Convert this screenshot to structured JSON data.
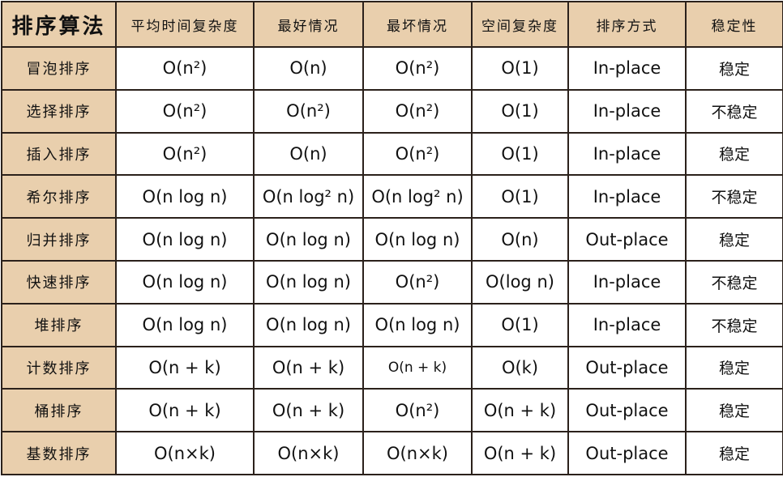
{
  "colors": {
    "header_bg": "#e9cfad",
    "border": "#2b211b",
    "cell_bg": "#ffffff"
  },
  "headers": [
    "排序算法",
    "平均时间复杂度",
    "最好情况",
    "最坏情况",
    "空间复杂度",
    "排序方式",
    "稳定性"
  ],
  "rows": [
    [
      "冒泡排序",
      "O(n²)",
      "O(n)",
      "O(n²)",
      "O(1)",
      "In-place",
      "稳定"
    ],
    [
      "选择排序",
      "O(n²)",
      "O(n²)",
      "O(n²)",
      "O(1)",
      "In-place",
      "不稳定"
    ],
    [
      "插入排序",
      "O(n²)",
      "O(n)",
      "O(n²)",
      "O(1)",
      "In-place",
      "稳定"
    ],
    [
      "希尔排序",
      "O(n log n)",
      "O(n log² n)",
      "O(n log² n)",
      "O(1)",
      "In-place",
      "不稳定"
    ],
    [
      "归并排序",
      "O(n log n)",
      "O(n log n)",
      "O(n log n)",
      "O(n)",
      "Out-place",
      "稳定"
    ],
    [
      "快速排序",
      "O(n log n)",
      "O(n log n)",
      "O(n²)",
      "O(log n)",
      "In-place",
      "不稳定"
    ],
    [
      "堆排序",
      "O(n log n)",
      "O(n log n)",
      "O(n log n)",
      "O(1)",
      "In-place",
      "不稳定"
    ],
    [
      "计数排序",
      "O(n + k)",
      "O(n + k)",
      "O(n + k)",
      "O(k)",
      "Out-place",
      "稳定"
    ],
    [
      "桶排序",
      "O(n + k)",
      "O(n + k)",
      "O(n²)",
      "O(n + k)",
      "Out-place",
      "稳定"
    ],
    [
      "基数排序",
      "O(n×k)",
      "O(n×k)",
      "O(n×k)",
      "O(n + k)",
      "Out-place",
      "稳定"
    ]
  ]
}
